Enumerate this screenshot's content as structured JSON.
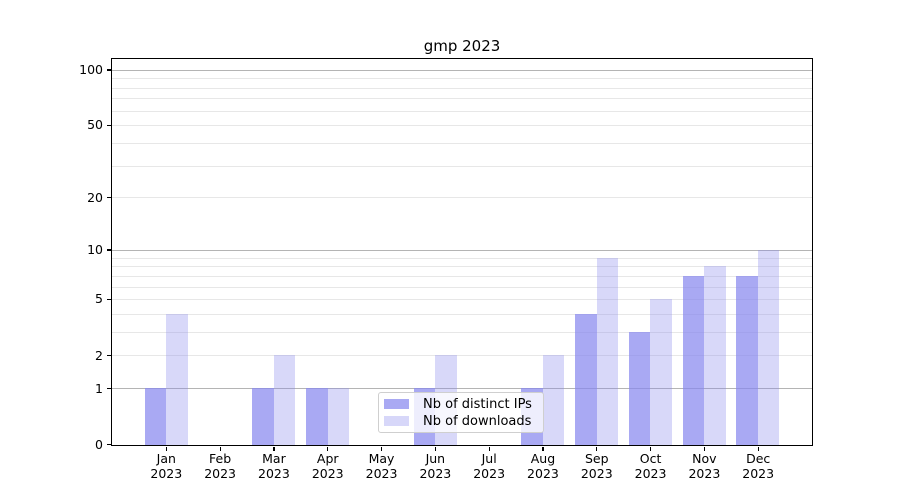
{
  "figure": {
    "title": "gmp 2023"
  },
  "chart_data": {
    "type": "bar",
    "title": "gmp 2023",
    "categories": [
      "Jan",
      "Feb",
      "Mar",
      "Apr",
      "May",
      "Jun",
      "Jul",
      "Aug",
      "Sep",
      "Oct",
      "Nov",
      "Dec"
    ],
    "year_label": "2023",
    "series": [
      {
        "name": "Nb of distinct IPs",
        "color": "#a9a9f3",
        "values": [
          1,
          0,
          1,
          1,
          0,
          1,
          0,
          1,
          4,
          3,
          7,
          7
        ]
      },
      {
        "name": "Nb of downloads",
        "color": "#d7d7f9",
        "values": [
          4,
          0,
          2,
          1,
          0,
          2,
          0,
          2,
          9,
          5,
          8,
          10
        ]
      }
    ],
    "yscale": "log1p",
    "ylim": [
      0,
      114
    ],
    "yticks": [
      0,
      1,
      2,
      5,
      10,
      20,
      50,
      100
    ],
    "ytick_minor": [
      3,
      4,
      6,
      7,
      8,
      9,
      30,
      40,
      60,
      70,
      80,
      90
    ],
    "grid": true,
    "legend_position": "lower center"
  },
  "colors": {
    "bar_fill_base": "#8888ee",
    "distinct_ips_solid": "#a9a9f3",
    "downloads_solid": "#d7d7f9",
    "grid_major": "#b4b4b4",
    "grid_minor": "#e7e7e7",
    "spine": "#000000",
    "background": "#ffffff"
  }
}
